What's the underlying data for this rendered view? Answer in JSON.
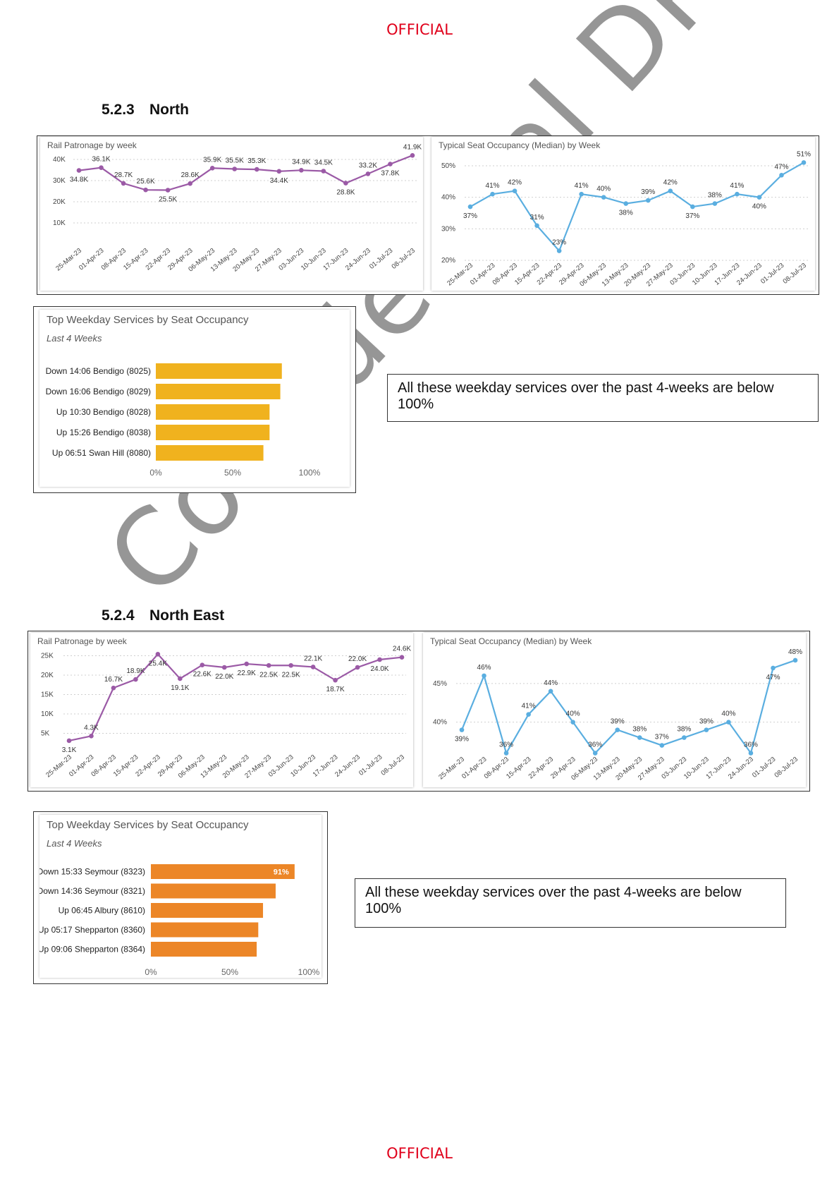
{
  "header": {
    "classification": "OFFICIAL"
  },
  "footer": {
    "classification": "OFFICIAL"
  },
  "watermark": {
    "text": "Confidential DRAFT"
  },
  "sections": [
    {
      "number": "5.2.3",
      "title": "North",
      "patronage_title": "Rail Patronage by week",
      "occupancy_title": "Typical Seat Occupancy (Median) by Week",
      "top_services_title": "Top Weekday Services by Seat Occupancy",
      "top_services_sub": "Last 4 Weeks",
      "note": "All these weekday services over the past 4-weeks are below 100%"
    },
    {
      "number": "5.2.4",
      "title": "North East",
      "patronage_title": "Rail Patronage by week",
      "occupancy_title": "Typical Seat Occupancy (Median) by Week",
      "top_services_title": "Top Weekday Services by Seat Occupancy",
      "top_services_sub": "Last 4 Weeks",
      "note": "All these weekday services over the past 4-weeks are below 100%"
    }
  ],
  "chart_data": [
    {
      "id": "north-patronage",
      "type": "line",
      "title": "Rail Patronage by week",
      "color": "#9b5aa6",
      "x": [
        "25-Mar-23",
        "01-Apr-23",
        "08-Apr-23",
        "15-Apr-23",
        "22-Apr-23",
        "29-Apr-23",
        "06-May-23",
        "13-May-23",
        "20-May-23",
        "27-May-23",
        "03-Jun-23",
        "10-Jun-23",
        "17-Jun-23",
        "24-Jun-23",
        "01-Jul-23",
        "08-Jul-23"
      ],
      "values": [
        34.8,
        36.1,
        28.7,
        25.6,
        25.5,
        28.6,
        35.9,
        35.5,
        35.3,
        34.4,
        34.9,
        34.5,
        28.8,
        33.2,
        37.8,
        41.9
      ],
      "labels": [
        "34.8K",
        "36.1K",
        "28.7K",
        "25.6K",
        "25.5K",
        "28.6K",
        "35.9K",
        "35.5K",
        "35.3K",
        "34.4K",
        "34.9K",
        "34.5K",
        "28.8K",
        "33.2K",
        "37.8K",
        "41.9K"
      ],
      "label_pos": [
        "below",
        "above",
        "above",
        "above",
        "below",
        "above",
        "above",
        "above",
        "above",
        "below",
        "above",
        "above",
        "below",
        "above",
        "below",
        "above"
      ],
      "yticks": [
        10,
        20,
        30,
        40
      ],
      "ytick_labels": [
        "10K",
        "20K",
        "30K",
        "40K"
      ],
      "ylim": [
        0,
        44
      ]
    },
    {
      "id": "north-occupancy",
      "type": "line",
      "title": "Typical Seat Occupancy (Median) by Week",
      "color": "#5aaee0",
      "x": [
        "25-Mar-23",
        "01-Apr-23",
        "08-Apr-23",
        "15-Apr-23",
        "22-Apr-23",
        "29-Apr-23",
        "06-May-23",
        "13-May-23",
        "20-May-23",
        "27-May-23",
        "03-Jun-23",
        "10-Jun-23",
        "17-Jun-23",
        "24-Jun-23",
        "01-Jul-23",
        "08-Jul-23"
      ],
      "values": [
        37,
        41,
        42,
        31,
        23,
        41,
        40,
        38,
        39,
        42,
        37,
        38,
        41,
        40,
        47,
        51
      ],
      "labels": [
        "37%",
        "41%",
        "42%",
        "31%",
        "23%",
        "41%",
        "40%",
        "38%",
        "39%",
        "42%",
        "37%",
        "38%",
        "41%",
        "40%",
        "47%",
        "51%"
      ],
      "label_pos": [
        "below",
        "above",
        "above",
        "above",
        "above",
        "above",
        "above",
        "below",
        "above",
        "above",
        "below",
        "above",
        "above",
        "below",
        "above",
        "above"
      ],
      "yticks": [
        20,
        30,
        40,
        50
      ],
      "ytick_labels": [
        "20%",
        "30%",
        "40%",
        "50%"
      ],
      "ylim": [
        20,
        52
      ]
    },
    {
      "id": "north-top-services",
      "type": "bar",
      "orientation": "horizontal",
      "title": "Top Weekday Services by Seat Occupancy",
      "color": "#f0b21e",
      "categories": [
        "Down 14:06 Bendigo (8025)",
        "Down 16:06 Bendigo (8029)",
        "Up 10:30 Bendigo (8028)",
        "Up 15:26 Bendigo (8038)",
        "Up 06:51 Swan Hill (8080)"
      ],
      "values": [
        82,
        81,
        74,
        74,
        70
      ],
      "xticks": [
        "0%",
        "50%",
        "100%"
      ],
      "xlim": [
        0,
        100
      ]
    },
    {
      "id": "northeast-patronage",
      "type": "line",
      "title": "Rail Patronage by week",
      "color": "#9b5aa6",
      "x": [
        "25-Mar-23",
        "01-Apr-23",
        "08-Apr-23",
        "15-Apr-23",
        "22-Apr-23",
        "29-Apr-23",
        "06-May-23",
        "13-May-23",
        "20-May-23",
        "27-May-23",
        "03-Jun-23",
        "10-Jun-23",
        "17-Jun-23",
        "24-Jun-23",
        "01-Jul-23",
        "08-Jul-23"
      ],
      "values": [
        3.1,
        4.3,
        16.7,
        18.9,
        25.4,
        19.1,
        22.6,
        22.0,
        22.9,
        22.5,
        22.5,
        22.1,
        18.7,
        22.0,
        24.0,
        24.6
      ],
      "labels": [
        "3.1K",
        "4.3K",
        "16.7K",
        "18.9K",
        "25.4K",
        "19.1K",
        "22.6K",
        "22.0K",
        "22.9K",
        "22.5K",
        "22.5K",
        "22.1K",
        "18.7K",
        "22.0K",
        "24.0K",
        "24.6K"
      ],
      "label_pos": [
        "below",
        "above",
        "above",
        "above",
        "below",
        "below",
        "below",
        "below",
        "below",
        "below",
        "below",
        "above",
        "below",
        "above",
        "below",
        "above"
      ],
      "yticks": [
        5,
        10,
        15,
        20,
        25
      ],
      "ytick_labels": [
        "5K",
        "10K",
        "15K",
        "20K",
        "25K"
      ],
      "ylim": [
        0,
        26
      ]
    },
    {
      "id": "northeast-occupancy",
      "type": "line",
      "title": "Typical Seat Occupancy (Median) by Week",
      "color": "#5aaee0",
      "x": [
        "25-Mar-23",
        "01-Apr-23",
        "08-Apr-23",
        "15-Apr-23",
        "22-Apr-23",
        "29-Apr-23",
        "06-May-23",
        "13-May-23",
        "20-May-23",
        "27-May-23",
        "03-Jun-23",
        "10-Jun-23",
        "17-Jun-23",
        "24-Jun-23",
        "01-Jul-23",
        "08-Jul-23"
      ],
      "values": [
        39,
        46,
        36,
        41,
        44,
        40,
        36,
        39,
        38,
        37,
        38,
        39,
        40,
        36,
        47,
        48
      ],
      "labels": [
        "39%",
        "46%",
        "36%",
        "41%",
        "44%",
        "40%",
        "36%",
        "39%",
        "38%",
        "37%",
        "38%",
        "39%",
        "40%",
        "36%",
        "47%",
        "48%"
      ],
      "label_pos": [
        "below",
        "above",
        "above",
        "above",
        "above",
        "above",
        "above",
        "above",
        "above",
        "above",
        "above",
        "above",
        "above",
        "above",
        "below",
        "above"
      ],
      "yticks": [
        40,
        45
      ],
      "ytick_labels": [
        "40%",
        "45%"
      ],
      "ylim": [
        35.5,
        49
      ]
    },
    {
      "id": "northeast-top-services",
      "type": "bar",
      "orientation": "horizontal",
      "title": "Top Weekday Services by Seat Occupancy",
      "color": "#ec8627",
      "categories": [
        "Down 15:33 Seymour (8323)",
        "Down 14:36 Seymour (8321)",
        "Up 06:45 Albury (8610)",
        "Up 05:17 Shepparton (8360)",
        "Up 09:06 Shepparton (8364)"
      ],
      "values": [
        91,
        79,
        71,
        68,
        67
      ],
      "value_labels": [
        "91%",
        "",
        "",
        "",
        ""
      ],
      "xticks": [
        "0%",
        "50%",
        "100%"
      ],
      "xlim": [
        0,
        100
      ]
    }
  ]
}
